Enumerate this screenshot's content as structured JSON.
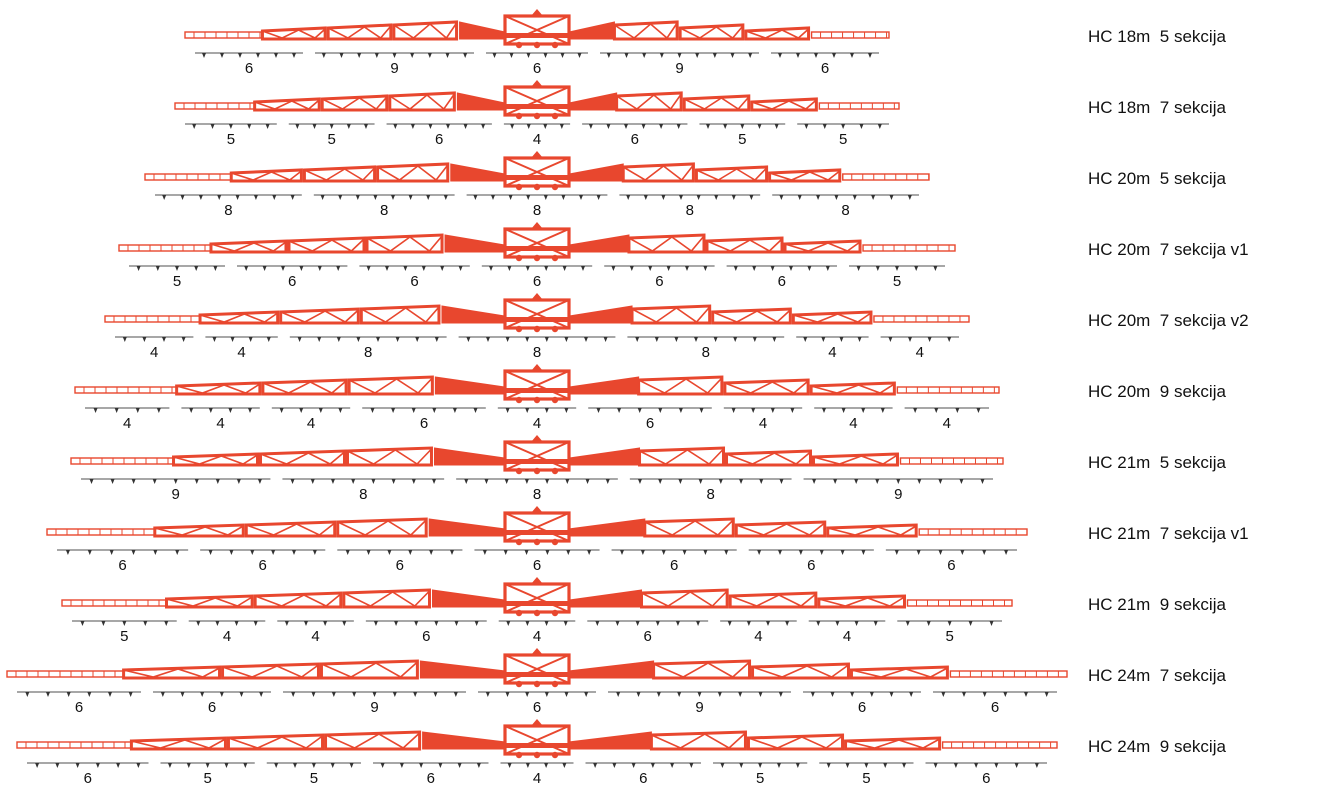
{
  "colors": {
    "boom": "#e8472e",
    "boom_light": "#f2a79a",
    "nozzle_bar": "#8a8a8a",
    "text": "#111111"
  },
  "configurations": [
    {
      "label": "HC 18m  5 sekcija",
      "sections": [
        6,
        9,
        6,
        9,
        6
      ]
    },
    {
      "label": "HC 18m  7 sekcija",
      "sections": [
        5,
        5,
        6,
        4,
        6,
        5,
        5
      ]
    },
    {
      "label": "HC 20m  5 sekcija",
      "sections": [
        8,
        8,
        8,
        8,
        8
      ]
    },
    {
      "label": "HC 20m  7 sekcija v1",
      "sections": [
        5,
        6,
        6,
        6,
        6,
        6,
        5
      ]
    },
    {
      "label": "HC 20m  7 sekcija v2",
      "sections": [
        4,
        4,
        8,
        8,
        8,
        4,
        4
      ]
    },
    {
      "label": "HC 20m  9 sekcija",
      "sections": [
        4,
        4,
        4,
        6,
        4,
        6,
        4,
        4,
        4
      ]
    },
    {
      "label": "HC 21m  5 sekcija",
      "sections": [
        9,
        8,
        8,
        8,
        9
      ]
    },
    {
      "label": "HC 21m  7 sekcija v1",
      "sections": [
        6,
        6,
        6,
        6,
        6,
        6,
        6
      ]
    },
    {
      "label": "HC 21m  9 sekcija",
      "sections": [
        5,
        4,
        4,
        6,
        4,
        6,
        4,
        4,
        5
      ]
    },
    {
      "label": "HC 24m  7 sekcija",
      "sections": [
        6,
        6,
        9,
        6,
        9,
        6,
        6
      ]
    },
    {
      "label": "HC 24m  9 sekcija",
      "sections": [
        6,
        5,
        5,
        6,
        4,
        6,
        5,
        5,
        6
      ]
    }
  ]
}
